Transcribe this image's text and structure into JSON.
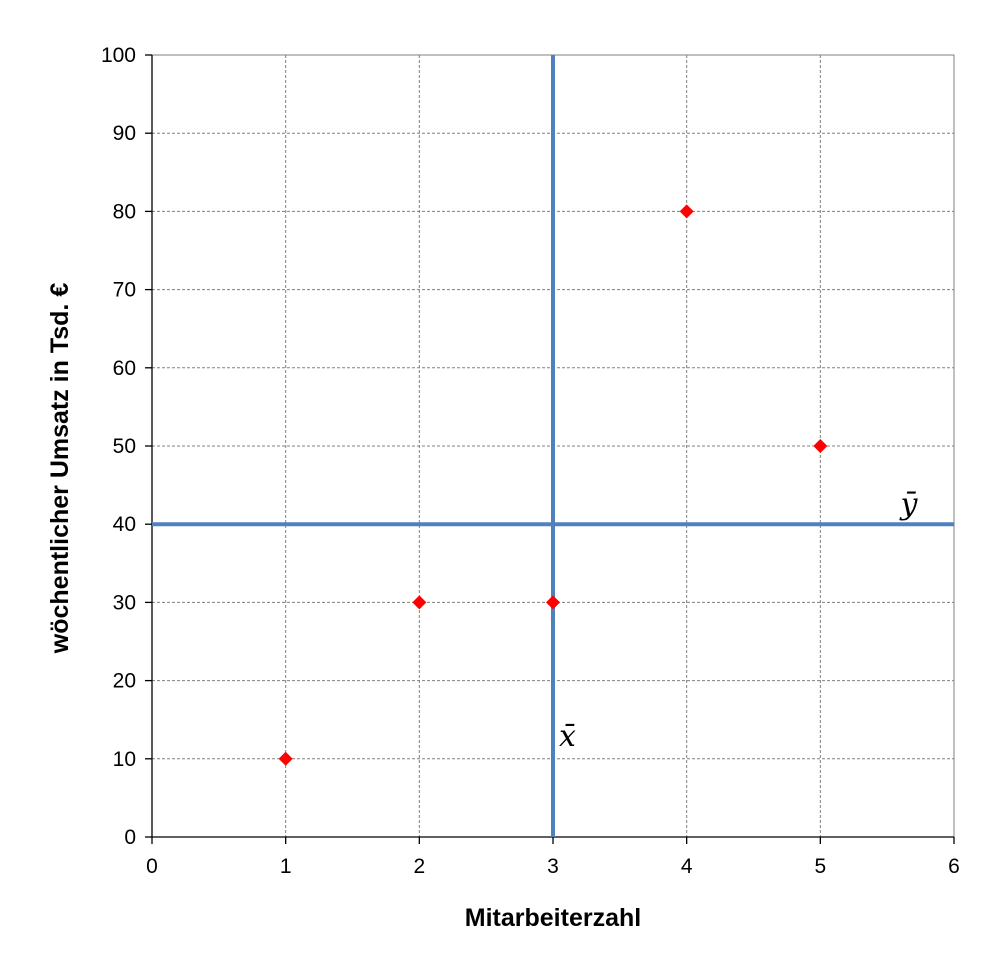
{
  "chart_data": {
    "type": "scatter",
    "title": "",
    "xlabel": "Mitarbeiterzahl",
    "ylabel": "wöchentlicher Umsatz in Tsd. €",
    "xlim": [
      0,
      6
    ],
    "ylim": [
      0,
      100
    ],
    "x_ticks": [
      0,
      1,
      2,
      3,
      4,
      5,
      6
    ],
    "y_ticks": [
      0,
      10,
      20,
      30,
      40,
      50,
      60,
      70,
      80,
      90,
      100
    ],
    "grid": true,
    "series": [
      {
        "marker": "diamond",
        "color": "#ff0000",
        "points": [
          {
            "x": 1,
            "y": 10
          },
          {
            "x": 2,
            "y": 30
          },
          {
            "x": 3,
            "y": 30
          },
          {
            "x": 4,
            "y": 80
          },
          {
            "x": 5,
            "y": 50
          }
        ]
      }
    ],
    "reference_lines": [
      {
        "orientation": "vertical",
        "value": 3,
        "label": "x̄",
        "color": "#4f81bd"
      },
      {
        "orientation": "horizontal",
        "value": 40,
        "label": "ȳ",
        "color": "#4f81bd"
      }
    ]
  }
}
